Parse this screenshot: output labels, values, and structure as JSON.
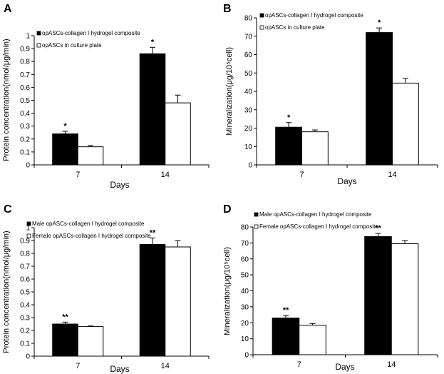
{
  "panels": [
    {
      "letter": "A",
      "chart_data": {
        "type": "bar",
        "categories": [
          "7",
          "14"
        ],
        "xlabel": "Days",
        "ylabel": "Protein concentration(nmol/μg/min)",
        "ylim": [
          0,
          1
        ],
        "yticks": [
          "0",
          "0.1",
          "0.2",
          "0.3",
          "0.4",
          "0.5",
          "0.6",
          "0.7",
          "0.8",
          "0.9",
          "1"
        ],
        "series": [
          {
            "name": "opASCs-collagen I hydrogel composite",
            "values": [
              0.24,
              0.86
            ],
            "errors": [
              0.02,
              0.05
            ],
            "color": "#000000"
          },
          {
            "name": "opASCs in culture plate",
            "values": [
              0.14,
              0.48
            ],
            "errors": [
              0.01,
              0.06
            ],
            "color": "#ffffff"
          }
        ],
        "annotations": [
          "*",
          "*"
        ]
      }
    },
    {
      "letter": "B",
      "chart_data": {
        "type": "bar",
        "categories": [
          "7",
          "14"
        ],
        "xlabel": "Days",
        "ylabel": "Mineralization(μg/10⁵cell)",
        "ylim": [
          0,
          80
        ],
        "yticks": [
          "0",
          "10",
          "20",
          "30",
          "40",
          "50",
          "60",
          "70",
          "80"
        ],
        "series": [
          {
            "name": "opASCs-collagen I hydrogel composite",
            "values": [
              20.5,
              72
            ],
            "errors": [
              2.5,
              2.5
            ],
            "color": "#000000"
          },
          {
            "name": "opASCs in culture plate",
            "values": [
              18,
              44.5
            ],
            "errors": [
              1,
              2.5
            ],
            "color": "#ffffff"
          }
        ],
        "annotations": [
          "*",
          "*"
        ]
      }
    },
    {
      "letter": "C",
      "chart_data": {
        "type": "bar",
        "categories": [
          "7",
          "14"
        ],
        "xlabel": "Days",
        "ylabel": "Protein concentration(nmol/μg/min)",
        "ylim": [
          0,
          1
        ],
        "yticks": [
          "0",
          "0.1",
          "0.2",
          "0.3",
          "0.4",
          "0.5",
          "0.6",
          "0.7",
          "0.8",
          "0.9",
          "1"
        ],
        "series": [
          {
            "name": "Male opASCs-collagen I hydrogel composite",
            "values": [
              0.25,
              0.87
            ],
            "errors": [
              0.015,
              0.05
            ],
            "color": "#000000"
          },
          {
            "name": "Female opASCs-collagen I hydrogel composite",
            "values": [
              0.23,
              0.85
            ],
            "errors": [
              0.005,
              0.05
            ],
            "color": "#ffffff"
          }
        ],
        "annotations": [
          "**",
          "**"
        ]
      }
    },
    {
      "letter": "D",
      "chart_data": {
        "type": "bar",
        "categories": [
          "7",
          "14"
        ],
        "xlabel": "Days",
        "ylabel": "Mineralization(μg/10⁵cell)",
        "ylim": [
          0,
          80
        ],
        "yticks": [
          "0",
          "10",
          "20",
          "30",
          "40",
          "50",
          "60",
          "70",
          "80"
        ],
        "series": [
          {
            "name": "Male opASCs-collagen I hydrogel composite",
            "values": [
              23,
              74
            ],
            "errors": [
              1.5,
              2
            ],
            "color": "#000000"
          },
          {
            "name": "Female opASCs-collagen I hydrogel composite",
            "values": [
              18.5,
              69.5
            ],
            "errors": [
              1,
              2
            ],
            "color": "#ffffff"
          }
        ],
        "annotations": [
          "**",
          "**"
        ]
      }
    }
  ]
}
